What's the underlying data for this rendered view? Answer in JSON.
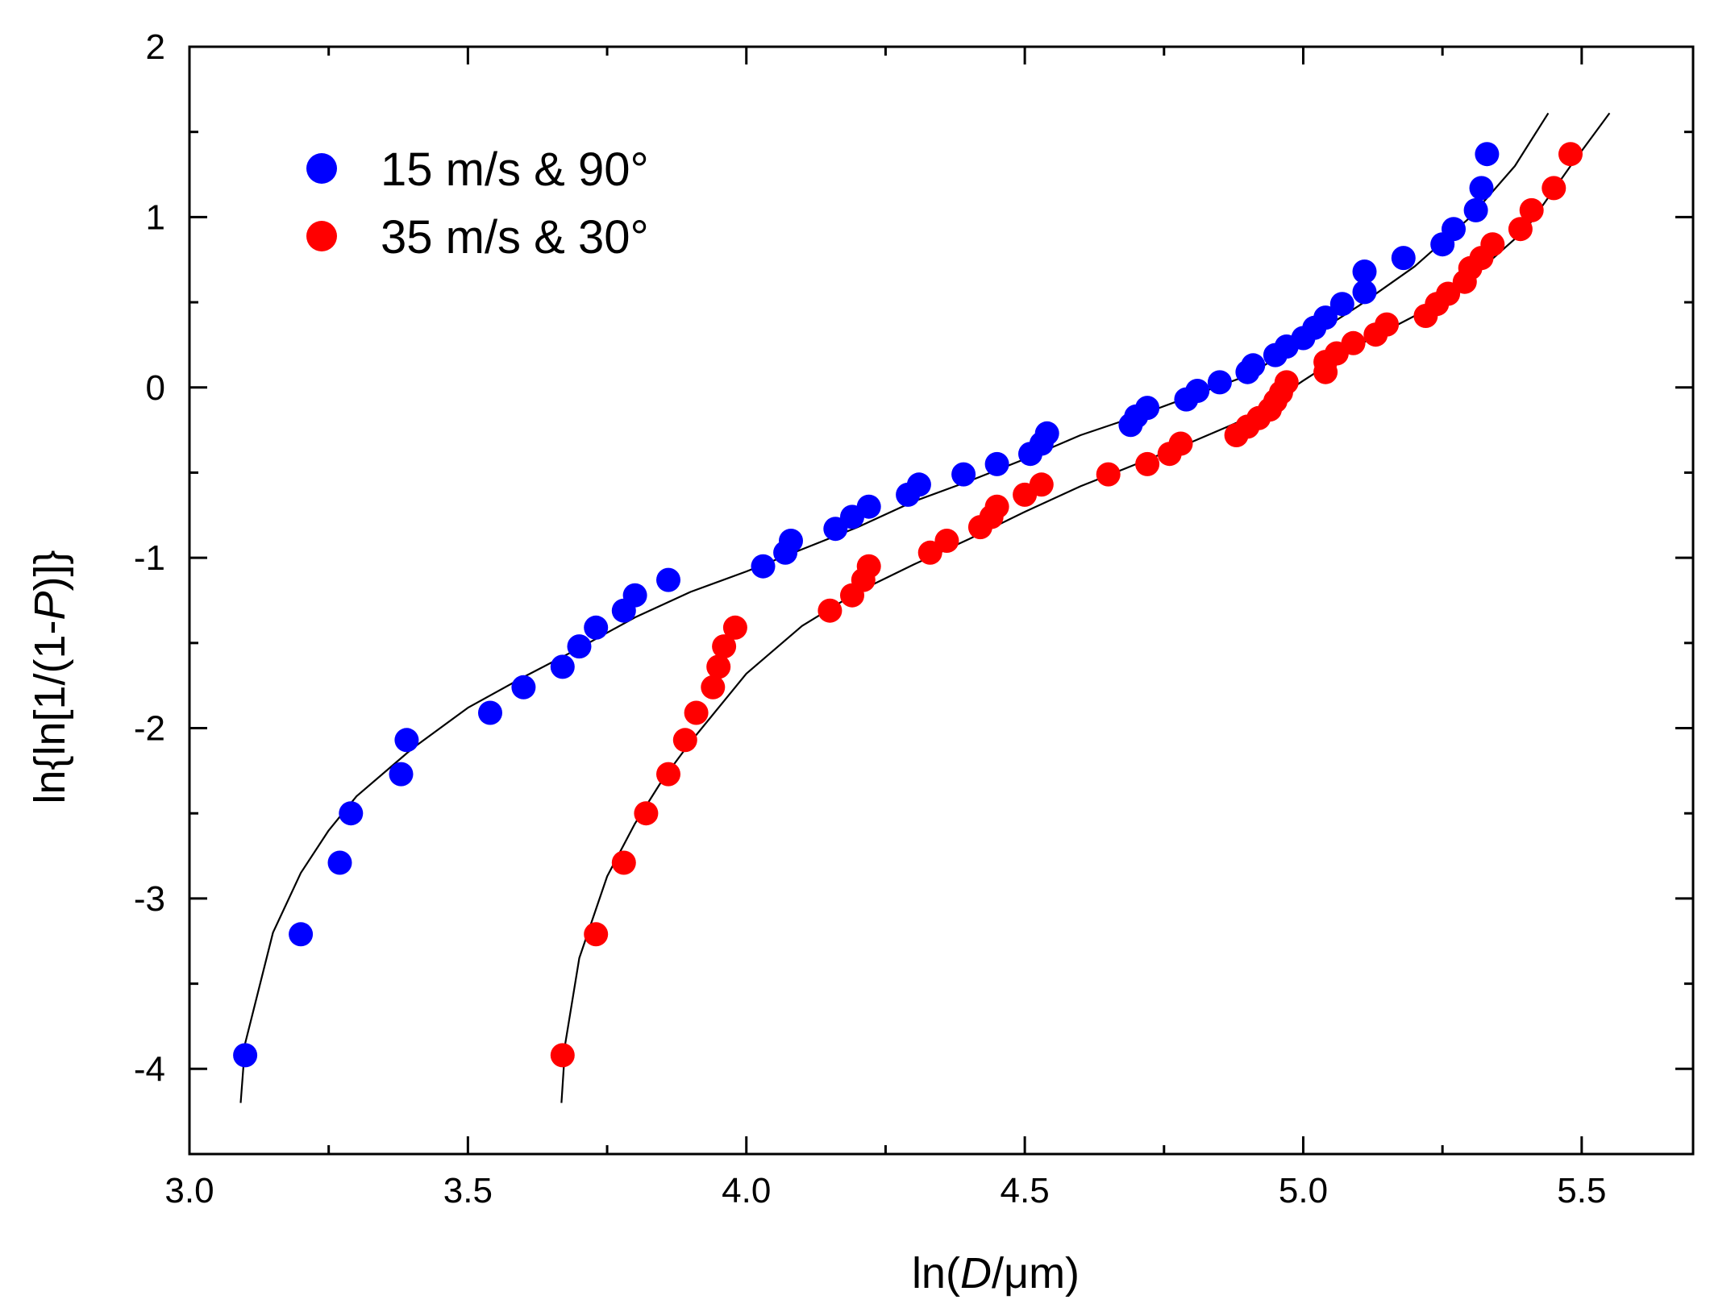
{
  "chart_data": {
    "type": "scatter",
    "title": "",
    "xlabel": {
      "prefix": "ln(",
      "italic": "D",
      "suffix": "/μm)"
    },
    "ylabel": {
      "prefix": "ln{ln[1/(1-",
      "italic": "P",
      "suffix": ")]}"
    },
    "xlim": [
      3.0,
      5.7
    ],
    "ylim": [
      -4.5,
      2.0
    ],
    "xticks": [
      {
        "value": 3.0,
        "label": "3.0"
      },
      {
        "value": 3.5,
        "label": "3.5"
      },
      {
        "value": 4.0,
        "label": "4.0"
      },
      {
        "value": 4.5,
        "label": "4.5"
      },
      {
        "value": 5.0,
        "label": "5.0"
      },
      {
        "value": 5.5,
        "label": "5.5"
      }
    ],
    "yticks": [
      {
        "value": 2,
        "label": "2"
      },
      {
        "value": 1,
        "label": "1"
      },
      {
        "value": 0,
        "label": "0"
      },
      {
        "value": -1,
        "label": "-1"
      },
      {
        "value": -2,
        "label": "-2"
      },
      {
        "value": -3,
        "label": "-3"
      },
      {
        "value": -4,
        "label": "-4"
      }
    ],
    "x_minor_step": 0.25,
    "y_minor_step": 0.5,
    "grid": false,
    "legend_position": "top-left",
    "series": [
      {
        "name": "15 m/s & 90°",
        "color": "#0000ff",
        "points": [
          [
            3.1,
            -3.92
          ],
          [
            3.2,
            -3.21
          ],
          [
            3.27,
            -2.79
          ],
          [
            3.29,
            -2.5
          ],
          [
            3.38,
            -2.27
          ],
          [
            3.39,
            -2.07
          ],
          [
            3.54,
            -1.91
          ],
          [
            3.6,
            -1.76
          ],
          [
            3.67,
            -1.64
          ],
          [
            3.7,
            -1.52
          ],
          [
            3.73,
            -1.41
          ],
          [
            3.78,
            -1.31
          ],
          [
            3.8,
            -1.22
          ],
          [
            3.86,
            -1.13
          ],
          [
            4.03,
            -1.05
          ],
          [
            4.07,
            -0.97
          ],
          [
            4.08,
            -0.9
          ],
          [
            4.16,
            -0.83
          ],
          [
            4.19,
            -0.76
          ],
          [
            4.22,
            -0.7
          ],
          [
            4.29,
            -0.63
          ],
          [
            4.31,
            -0.57
          ],
          [
            4.39,
            -0.51
          ],
          [
            4.45,
            -0.45
          ],
          [
            4.51,
            -0.39
          ],
          [
            4.53,
            -0.33
          ],
          [
            4.54,
            -0.27
          ],
          [
            4.69,
            -0.22
          ],
          [
            4.7,
            -0.17
          ],
          [
            4.72,
            -0.12
          ],
          [
            4.79,
            -0.07
          ],
          [
            4.81,
            -0.02
          ],
          [
            4.85,
            0.03
          ],
          [
            4.9,
            0.09
          ],
          [
            4.91,
            0.13
          ],
          [
            4.95,
            0.19
          ],
          [
            4.97,
            0.24
          ],
          [
            5.0,
            0.29
          ],
          [
            5.02,
            0.35
          ],
          [
            5.04,
            0.41
          ],
          [
            5.07,
            0.49
          ],
          [
            5.11,
            0.56
          ],
          [
            5.11,
            0.68
          ],
          [
            5.18,
            0.76
          ],
          [
            5.25,
            0.84
          ],
          [
            5.27,
            0.93
          ],
          [
            5.31,
            1.04
          ],
          [
            5.32,
            1.17
          ],
          [
            5.33,
            1.37
          ]
        ],
        "curve": [
          [
            3.092,
            -4.2
          ],
          [
            3.1,
            -3.85
          ],
          [
            3.15,
            -3.2
          ],
          [
            3.2,
            -2.85
          ],
          [
            3.25,
            -2.6
          ],
          [
            3.3,
            -2.4
          ],
          [
            3.4,
            -2.12
          ],
          [
            3.5,
            -1.88
          ],
          [
            3.6,
            -1.7
          ],
          [
            3.7,
            -1.53
          ],
          [
            3.8,
            -1.35
          ],
          [
            3.9,
            -1.2
          ],
          [
            4.0,
            -1.08
          ],
          [
            4.1,
            -0.95
          ],
          [
            4.2,
            -0.82
          ],
          [
            4.3,
            -0.67
          ],
          [
            4.4,
            -0.55
          ],
          [
            4.5,
            -0.42
          ],
          [
            4.6,
            -0.28
          ],
          [
            4.7,
            -0.17
          ],
          [
            4.8,
            -0.05
          ],
          [
            4.9,
            0.07
          ],
          [
            5.0,
            0.27
          ],
          [
            5.1,
            0.48
          ],
          [
            5.2,
            0.71
          ],
          [
            5.3,
            1.0
          ],
          [
            5.38,
            1.3
          ],
          [
            5.44,
            1.61
          ]
        ]
      },
      {
        "name": "35 m/s & 30°",
        "color": "#ff0000",
        "points": [
          [
            3.67,
            -3.92
          ],
          [
            3.73,
            -3.21
          ],
          [
            3.78,
            -2.79
          ],
          [
            3.82,
            -2.5
          ],
          [
            3.86,
            -2.27
          ],
          [
            3.89,
            -2.07
          ],
          [
            3.91,
            -1.91
          ],
          [
            3.94,
            -1.76
          ],
          [
            3.95,
            -1.64
          ],
          [
            3.96,
            -1.52
          ],
          [
            3.98,
            -1.41
          ],
          [
            4.15,
            -1.31
          ],
          [
            4.19,
            -1.22
          ],
          [
            4.21,
            -1.13
          ],
          [
            4.22,
            -1.05
          ],
          [
            4.33,
            -0.97
          ],
          [
            4.36,
            -0.9
          ],
          [
            4.42,
            -0.82
          ],
          [
            4.44,
            -0.76
          ],
          [
            4.45,
            -0.7
          ],
          [
            4.5,
            -0.63
          ],
          [
            4.53,
            -0.57
          ],
          [
            4.65,
            -0.51
          ],
          [
            4.72,
            -0.45
          ],
          [
            4.76,
            -0.39
          ],
          [
            4.78,
            -0.33
          ],
          [
            4.88,
            -0.28
          ],
          [
            4.9,
            -0.23
          ],
          [
            4.92,
            -0.18
          ],
          [
            4.94,
            -0.13
          ],
          [
            4.95,
            -0.08
          ],
          [
            4.96,
            -0.03
          ],
          [
            4.97,
            0.03
          ],
          [
            5.04,
            0.09
          ],
          [
            5.04,
            0.15
          ],
          [
            5.06,
            0.2
          ],
          [
            5.09,
            0.26
          ],
          [
            5.13,
            0.31
          ],
          [
            5.15,
            0.37
          ],
          [
            5.22,
            0.42
          ],
          [
            5.24,
            0.49
          ],
          [
            5.26,
            0.55
          ],
          [
            5.29,
            0.62
          ],
          [
            5.3,
            0.7
          ],
          [
            5.32,
            0.76
          ],
          [
            5.34,
            0.84
          ],
          [
            5.39,
            0.93
          ],
          [
            5.41,
            1.04
          ],
          [
            5.45,
            1.17
          ],
          [
            5.48,
            1.37
          ]
        ],
        "curve": [
          [
            3.668,
            -4.2
          ],
          [
            3.675,
            -3.85
          ],
          [
            3.7,
            -3.35
          ],
          [
            3.75,
            -2.87
          ],
          [
            3.8,
            -2.56
          ],
          [
            3.85,
            -2.3
          ],
          [
            3.9,
            -2.08
          ],
          [
            3.95,
            -1.88
          ],
          [
            4.0,
            -1.68
          ],
          [
            4.1,
            -1.4
          ],
          [
            4.2,
            -1.2
          ],
          [
            4.3,
            -1.04
          ],
          [
            4.4,
            -0.89
          ],
          [
            4.5,
            -0.73
          ],
          [
            4.6,
            -0.58
          ],
          [
            4.7,
            -0.45
          ],
          [
            4.8,
            -0.32
          ],
          [
            4.9,
            -0.18
          ],
          [
            5.0,
            0.04
          ],
          [
            5.1,
            0.25
          ],
          [
            5.2,
            0.42
          ],
          [
            5.3,
            0.64
          ],
          [
            5.4,
            0.93
          ],
          [
            5.48,
            1.3
          ],
          [
            5.55,
            1.61
          ]
        ]
      }
    ]
  }
}
